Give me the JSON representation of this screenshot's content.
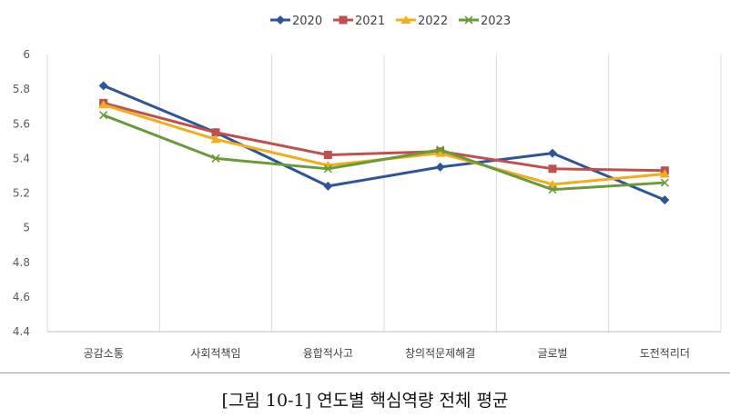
{
  "chart_data": {
    "type": "line",
    "title": "",
    "xlabel": "",
    "ylabel": "",
    "categories": [
      "공감소통",
      "사회적책임",
      "융합적사고",
      "창의적문제해결",
      "글로벌",
      "도전적리더"
    ],
    "ylim": [
      4.4,
      6
    ],
    "yticks": [
      "4.4",
      "4.6",
      "4.8",
      "5",
      "5.2",
      "5.4",
      "5.6",
      "5.8",
      "6"
    ],
    "grid": "vertical",
    "legend": "top",
    "series": [
      {
        "name": "2020",
        "color": "#2e5597",
        "marker": "diamond",
        "values": [
          5.82,
          5.55,
          5.24,
          5.35,
          5.43,
          5.16
        ]
      },
      {
        "name": "2021",
        "color": "#c0504d",
        "marker": "square",
        "values": [
          5.72,
          5.55,
          5.42,
          5.44,
          5.34,
          5.33
        ]
      },
      {
        "name": "2022",
        "color": "#f0ae1c",
        "marker": "triangle",
        "values": [
          5.71,
          5.51,
          5.36,
          5.43,
          5.25,
          5.31
        ]
      },
      {
        "name": "2023",
        "color": "#6a9a3a",
        "marker": "x",
        "values": [
          5.65,
          5.4,
          5.34,
          5.45,
          5.22,
          5.26
        ]
      }
    ]
  },
  "caption": "[그림 10-1] 연도별 핵심역량 전체 평균"
}
